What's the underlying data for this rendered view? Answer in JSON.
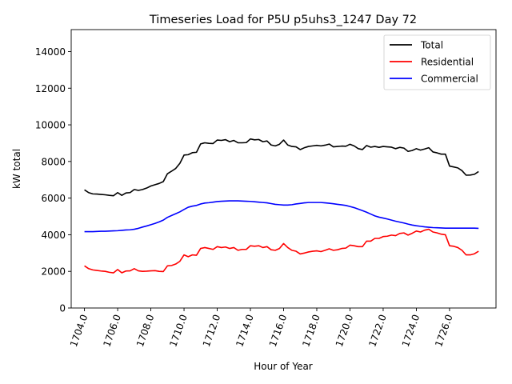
{
  "chart_data": {
    "type": "line",
    "title": "Timeseries Load for P5U p5uhs3_1247  Day 72",
    "xlabel": "Hour of Year",
    "ylabel": "kW total",
    "xlim": [
      1703.2,
      1728.8
    ],
    "ylim": [
      0,
      15200
    ],
    "x_ticks": [
      1704,
      1706,
      1708,
      1710,
      1712,
      1714,
      1716,
      1718,
      1720,
      1722,
      1724,
      1726
    ],
    "x_tick_labels": [
      "1704.0",
      "1706.0",
      "1708.0",
      "1710.0",
      "1712.0",
      "1714.0",
      "1716.0",
      "1718.0",
      "1720.0",
      "1722.0",
      "1724.0",
      "1726.0"
    ],
    "y_ticks": [
      0,
      2000,
      4000,
      6000,
      8000,
      10000,
      12000,
      14000
    ],
    "y_tick_labels": [
      "0",
      "2000",
      "4000",
      "6000",
      "8000",
      "10000",
      "12000",
      "14000"
    ],
    "grid": false,
    "legend_position": "top-right",
    "series": [
      {
        "name": "Total",
        "color": "#000000",
        "x": [
          1704.0,
          1704.25,
          1704.5,
          1704.75,
          1705.0,
          1705.25,
          1705.5,
          1705.75,
          1706.0,
          1706.25,
          1706.5,
          1706.75,
          1707.0,
          1707.25,
          1707.5,
          1707.75,
          1708.0,
          1708.25,
          1708.5,
          1708.75,
          1709.0,
          1709.25,
          1709.5,
          1709.75,
          1710.0,
          1710.25,
          1710.5,
          1710.75,
          1711.0,
          1711.25,
          1711.5,
          1711.75,
          1712.0,
          1712.25,
          1712.5,
          1712.75,
          1713.0,
          1713.25,
          1713.5,
          1713.75,
          1714.0,
          1714.25,
          1714.5,
          1714.75,
          1715.0,
          1715.25,
          1715.5,
          1715.75,
          1716.0,
          1716.25,
          1716.5,
          1716.75,
          1717.0,
          1717.25,
          1717.5,
          1717.75,
          1718.0,
          1718.25,
          1718.5,
          1718.75,
          1719.0,
          1719.25,
          1719.5,
          1719.75,
          1720.0,
          1720.25,
          1720.5,
          1720.75,
          1721.0,
          1721.25,
          1721.5,
          1721.75,
          1722.0,
          1722.25,
          1722.5,
          1722.75,
          1723.0,
          1723.25,
          1723.5,
          1723.75,
          1724.0,
          1724.25,
          1724.5,
          1724.75,
          1725.0,
          1725.25,
          1725.5,
          1725.75,
          1726.0,
          1726.25,
          1726.5,
          1726.75,
          1727.0,
          1727.25,
          1727.5,
          1727.75
        ],
        "values": [
          6450,
          6300,
          6230,
          6220,
          6200,
          6180,
          6150,
          6130,
          6300,
          6150,
          6280,
          6300,
          6470,
          6420,
          6470,
          6550,
          6660,
          6730,
          6800,
          6900,
          7330,
          7470,
          7620,
          7900,
          8350,
          8370,
          8480,
          8500,
          8960,
          9020,
          8990,
          8980,
          9170,
          9150,
          9190,
          9080,
          9150,
          9020,
          9020,
          9030,
          9230,
          9180,
          9200,
          9080,
          9120,
          8900,
          8850,
          8940,
          9170,
          8900,
          8820,
          8800,
          8650,
          8750,
          8820,
          8850,
          8880,
          8850,
          8890,
          8950,
          8800,
          8820,
          8840,
          8830,
          8940,
          8850,
          8700,
          8650,
          8870,
          8780,
          8820,
          8770,
          8820,
          8800,
          8780,
          8700,
          8770,
          8730,
          8550,
          8600,
          8700,
          8620,
          8680,
          8750,
          8520,
          8470,
          8400,
          8400,
          7750,
          7700,
          7650,
          7500,
          7250,
          7260,
          7300,
          7450
        ]
      },
      {
        "name": "Residential",
        "color": "#ff0000",
        "x": [
          1704.0,
          1704.25,
          1704.5,
          1704.75,
          1705.0,
          1705.25,
          1705.5,
          1705.75,
          1706.0,
          1706.25,
          1706.5,
          1706.75,
          1707.0,
          1707.25,
          1707.5,
          1707.75,
          1708.0,
          1708.25,
          1708.5,
          1708.75,
          1709.0,
          1709.25,
          1709.5,
          1709.75,
          1710.0,
          1710.25,
          1710.5,
          1710.75,
          1711.0,
          1711.25,
          1711.5,
          1711.75,
          1712.0,
          1712.25,
          1712.5,
          1712.75,
          1713.0,
          1713.25,
          1713.5,
          1713.75,
          1714.0,
          1714.25,
          1714.5,
          1714.75,
          1715.0,
          1715.25,
          1715.5,
          1715.75,
          1716.0,
          1716.25,
          1716.5,
          1716.75,
          1717.0,
          1717.25,
          1717.5,
          1717.75,
          1718.0,
          1718.25,
          1718.5,
          1718.75,
          1719.0,
          1719.25,
          1719.5,
          1719.75,
          1720.0,
          1720.25,
          1720.5,
          1720.75,
          1721.0,
          1721.25,
          1721.5,
          1721.75,
          1722.0,
          1722.25,
          1722.5,
          1722.75,
          1723.0,
          1723.25,
          1723.5,
          1723.75,
          1724.0,
          1724.25,
          1724.5,
          1724.75,
          1725.0,
          1725.25,
          1725.5,
          1725.75,
          1726.0,
          1726.25,
          1726.5,
          1726.75,
          1727.0,
          1727.25,
          1727.5,
          1727.75
        ],
        "values": [
          2300,
          2150,
          2080,
          2050,
          2020,
          2000,
          1950,
          1920,
          2100,
          1920,
          2020,
          2030,
          2150,
          2030,
          2000,
          2010,
          2030,
          2040,
          2000,
          1990,
          2300,
          2320,
          2400,
          2550,
          2900,
          2800,
          2900,
          2880,
          3250,
          3300,
          3250,
          3200,
          3350,
          3300,
          3330,
          3250,
          3300,
          3150,
          3200,
          3200,
          3400,
          3370,
          3400,
          3300,
          3350,
          3180,
          3150,
          3250,
          3520,
          3300,
          3150,
          3100,
          2950,
          3000,
          3060,
          3100,
          3120,
          3080,
          3150,
          3230,
          3150,
          3180,
          3250,
          3270,
          3430,
          3400,
          3350,
          3350,
          3650,
          3650,
          3800,
          3800,
          3900,
          3920,
          3980,
          3950,
          4070,
          4100,
          3980,
          4080,
          4200,
          4150,
          4250,
          4300,
          4150,
          4100,
          4030,
          4000,
          3400,
          3370,
          3300,
          3150,
          2900,
          2900,
          2960,
          3100
        ]
      },
      {
        "name": "Commercial",
        "color": "#0000ff",
        "x": [
          1704.0,
          1704.25,
          1704.5,
          1704.75,
          1705.0,
          1705.25,
          1705.5,
          1705.75,
          1706.0,
          1706.25,
          1706.5,
          1706.75,
          1707.0,
          1707.25,
          1707.5,
          1707.75,
          1708.0,
          1708.25,
          1708.5,
          1708.75,
          1709.0,
          1709.25,
          1709.5,
          1709.75,
          1710.0,
          1710.25,
          1710.5,
          1710.75,
          1711.0,
          1711.25,
          1711.5,
          1711.75,
          1712.0,
          1712.25,
          1712.5,
          1712.75,
          1713.0,
          1713.25,
          1713.5,
          1713.75,
          1714.0,
          1714.25,
          1714.5,
          1714.75,
          1715.0,
          1715.25,
          1715.5,
          1715.75,
          1716.0,
          1716.25,
          1716.5,
          1716.75,
          1717.0,
          1717.25,
          1717.5,
          1717.75,
          1718.0,
          1718.25,
          1718.5,
          1718.75,
          1719.0,
          1719.25,
          1719.5,
          1719.75,
          1720.0,
          1720.25,
          1720.5,
          1720.75,
          1721.0,
          1721.25,
          1721.5,
          1721.75,
          1722.0,
          1722.25,
          1722.5,
          1722.75,
          1723.0,
          1723.25,
          1723.5,
          1723.75,
          1724.0,
          1724.25,
          1724.5,
          1724.75,
          1725.0,
          1725.25,
          1725.5,
          1725.75,
          1726.0,
          1726.25,
          1726.5,
          1726.75,
          1727.0,
          1727.25,
          1727.5,
          1727.75
        ],
        "values": [
          4170,
          4170,
          4170,
          4180,
          4190,
          4190,
          4200,
          4210,
          4220,
          4240,
          4260,
          4270,
          4300,
          4350,
          4420,
          4480,
          4550,
          4620,
          4700,
          4800,
          4950,
          5050,
          5150,
          5250,
          5380,
          5500,
          5560,
          5600,
          5680,
          5730,
          5750,
          5780,
          5810,
          5830,
          5840,
          5850,
          5850,
          5850,
          5840,
          5830,
          5820,
          5800,
          5780,
          5760,
          5740,
          5700,
          5660,
          5640,
          5620,
          5620,
          5640,
          5680,
          5710,
          5740,
          5760,
          5760,
          5760,
          5760,
          5740,
          5720,
          5690,
          5660,
          5630,
          5600,
          5540,
          5480,
          5400,
          5320,
          5230,
          5130,
          5030,
          4960,
          4910,
          4860,
          4800,
          4740,
          4690,
          4640,
          4580,
          4530,
          4490,
          4460,
          4430,
          4410,
          4390,
          4380,
          4370,
          4360,
          4360,
          4360,
          4360,
          4360,
          4360,
          4360,
          4360,
          4350
        ]
      }
    ]
  }
}
